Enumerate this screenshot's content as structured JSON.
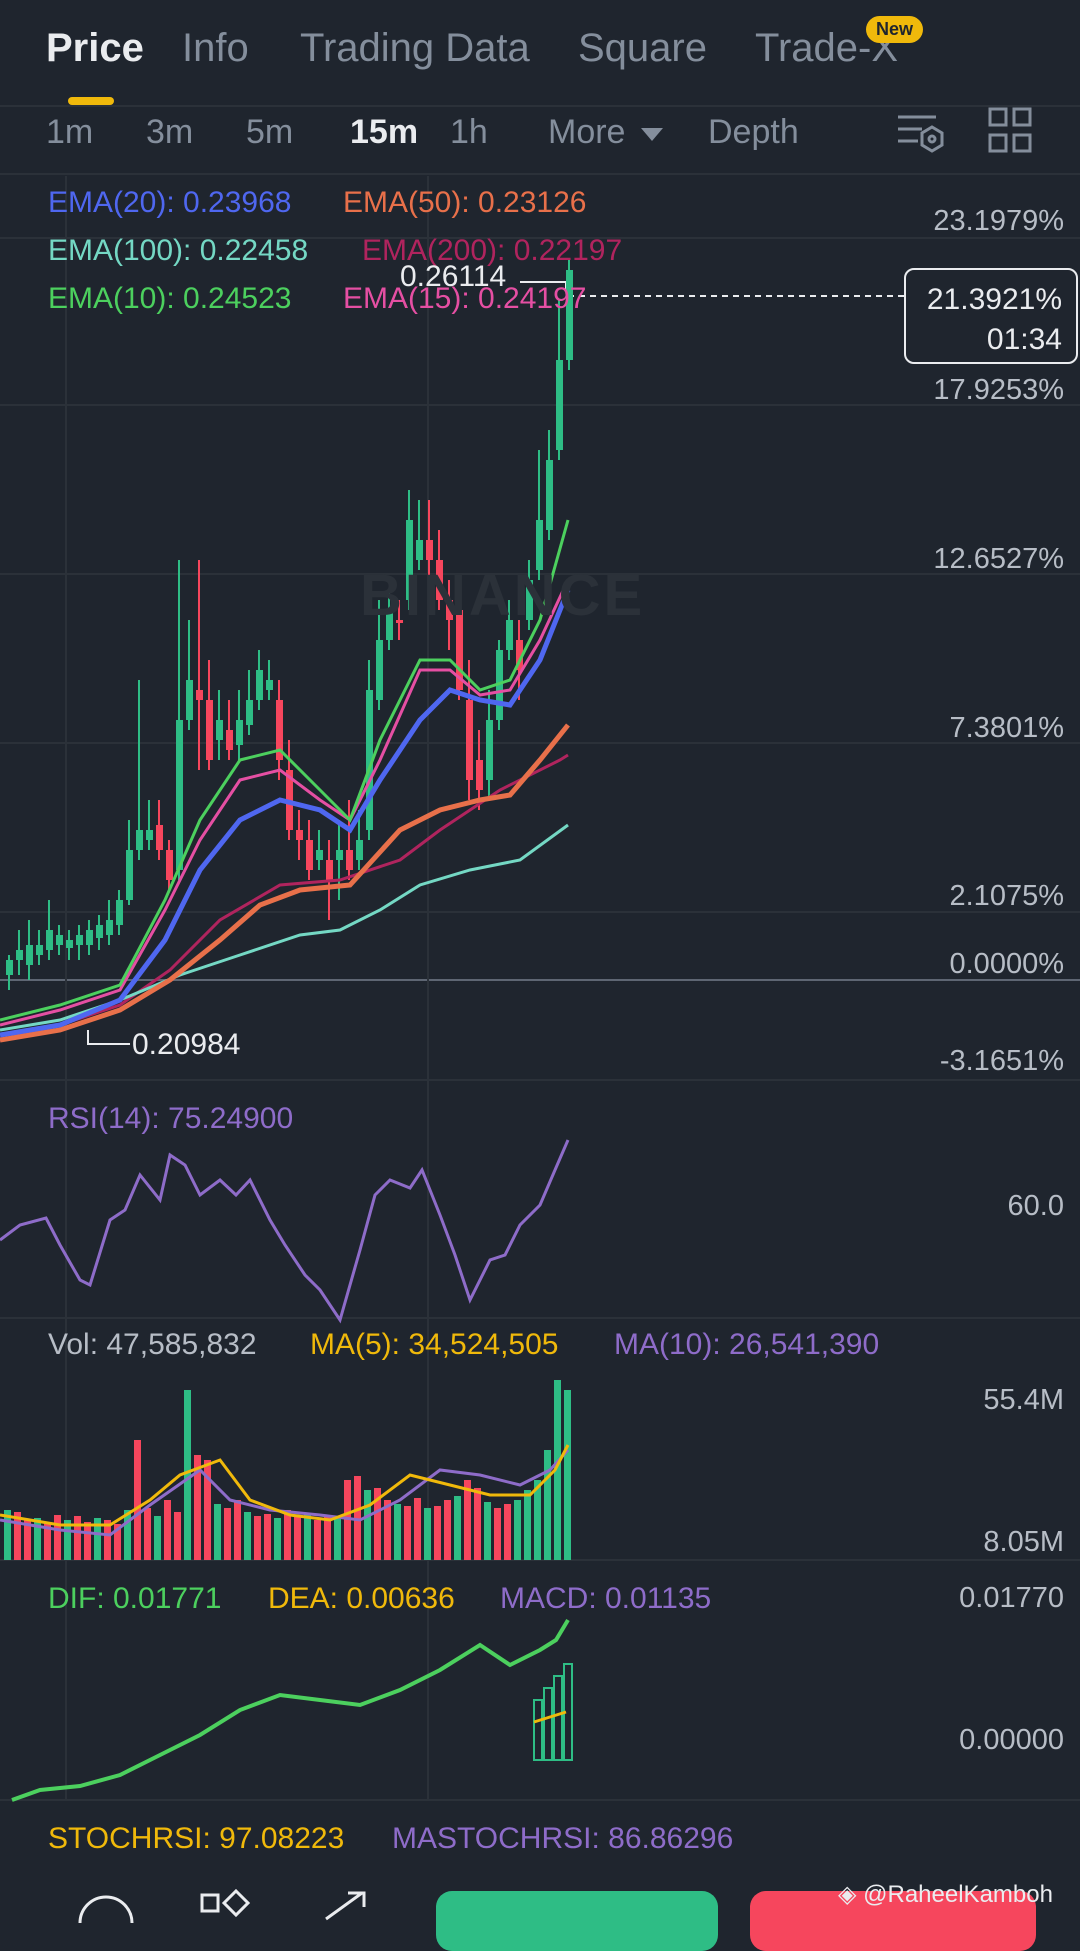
{
  "tabs": [
    {
      "label": "Price"
    },
    {
      "label": "Info"
    },
    {
      "label": "Trading Data"
    },
    {
      "label": "Square"
    },
    {
      "label": "Trade-X"
    }
  ],
  "new_badge": "New",
  "intervals": [
    "1m",
    "3m",
    "5m",
    "15m",
    "1h"
  ],
  "more_label": "More",
  "depth_label": "Depth",
  "ema": {
    "ema20": "EMA(20): 0.23968",
    "ema50": "EMA(50): 0.23126",
    "ema100": "EMA(100): 0.22458",
    "ema200": "EMA(200): 0.22197",
    "ema10": "EMA(10): 0.24523",
    "ema15": "EMA(15): 0.24197"
  },
  "colors": {
    "green": "#2ebd85",
    "red": "#f6465d",
    "ema20": "#4f67f0",
    "ema50": "#e8704a",
    "ema100": "#74d8c4",
    "ema200": "#b0245e",
    "ema10": "#4cd05e",
    "ema15": "#e54fa3",
    "purple": "#8e6cc9",
    "yellow": "#f0b90b",
    "accent": "#f0b90b"
  },
  "price_axis": [
    "23.1979%",
    "17.9253%",
    "12.6527%",
    "7.3801%",
    "2.1075%",
    "0.0000%",
    "-3.1651%"
  ],
  "current": {
    "percent": "21.3921%",
    "countdown": "01:34"
  },
  "high_label": "0.26114",
  "low_label": "0.20984",
  "rsi": {
    "label": "RSI(14): 75.24900",
    "axis": "60.0"
  },
  "volume": {
    "vol": "Vol: 47,585,832",
    "ma5": "MA(5): 34,524,505",
    "ma10": "MA(10): 26,541,390",
    "axis_top": "55.4M",
    "axis_bottom": "8.05M"
  },
  "macd": {
    "dif": "DIF: 0.01771",
    "dea": "DEA: 0.00636",
    "macd": "MACD: 0.01135",
    "axis_top": "0.01770",
    "axis_mid": "0.00000"
  },
  "stochrsi": {
    "stoch": "STOCHRSI: 97.08223",
    "mastoch": "MASTOCHRSI: 86.86296"
  },
  "watermark": "@RaheelKamboh",
  "watermark_logo_text": "BINANCE"
}
